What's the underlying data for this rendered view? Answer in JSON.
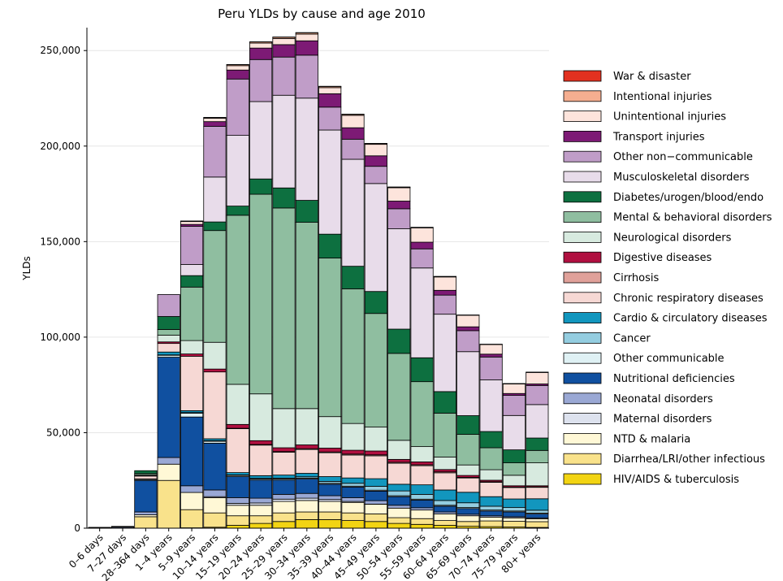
{
  "chart_data": {
    "type": "bar",
    "stacked": true,
    "title": "Peru YLDs by cause and age 2010",
    "xlabel": "",
    "ylabel": "YLDs",
    "ylim": [
      0,
      262000
    ],
    "yticks": [
      0,
      50000,
      100000,
      150000,
      200000,
      250000
    ],
    "ytick_labels": [
      "0",
      "50,000",
      "100,000",
      "150,000",
      "200,000",
      "250,000"
    ],
    "grid": "horizontal",
    "legend_position": "right",
    "categories": [
      "0–6 days",
      "7–27 days",
      "28–364 days",
      "1–4 years",
      "5–9 years",
      "10–14 years",
      "15–19 years",
      "20–24 years",
      "25–29 years",
      "30–34 years",
      "35–39 years",
      "40–44 years",
      "45–49 years",
      "50–54 years",
      "55–59 years",
      "60–64 years",
      "65–69 years",
      "70–74 years",
      "75–79 years",
      "80+ years"
    ],
    "series": [
      {
        "name": "HIV/AIDS & tuberculosis",
        "color": "#f2d413",
        "values": [
          0,
          0,
          0,
          0,
          200,
          500,
          1500,
          2500,
          3500,
          4500,
          4500,
          4000,
          3500,
          2500,
          2000,
          1500,
          1000,
          800,
          600,
          400
        ]
      },
      {
        "name": "Diarrhea/LRI/other infectious",
        "color": "#f9e28b",
        "values": [
          50,
          150,
          6000,
          25000,
          9500,
          7500,
          5000,
          4000,
          4500,
          4000,
          4000,
          4000,
          4000,
          3000,
          3000,
          2500,
          2500,
          3000,
          3000,
          3000
        ]
      },
      {
        "name": "NTD & malaria",
        "color": "#fff8d6",
        "values": [
          0,
          0,
          1000,
          8500,
          9000,
          8000,
          5500,
          5500,
          6000,
          6000,
          5500,
          5500,
          5000,
          5000,
          4500,
          3500,
          3000,
          2000,
          1800,
          1500
        ]
      },
      {
        "name": "Maternal disorders",
        "color": "#dde2ee",
        "values": [
          0,
          0,
          0,
          0,
          0,
          500,
          1000,
          1200,
          1200,
          1200,
          1000,
          500,
          100,
          0,
          0,
          0,
          0,
          0,
          0,
          0
        ]
      },
      {
        "name": "Neonatal disorders",
        "color": "#9aa8d4",
        "values": [
          200,
          500,
          1500,
          3500,
          3500,
          3500,
          3000,
          2500,
          2500,
          2500,
          2000,
          2000,
          1800,
          1500,
          1200,
          1000,
          800,
          700,
          600,
          500
        ]
      },
      {
        "name": "Nutritional deficiencies",
        "color": "#1050a0",
        "values": [
          0,
          0,
          16500,
          52500,
          36000,
          24500,
          11000,
          9500,
          7500,
          7500,
          6000,
          5500,
          5000,
          4500,
          4000,
          3000,
          3000,
          2500,
          2500,
          2000
        ]
      },
      {
        "name": "Other communicable",
        "color": "#dff1f4",
        "values": [
          200,
          300,
          500,
          1000,
          2000,
          1000,
          600,
          500,
          500,
          500,
          500,
          500,
          500,
          500,
          500,
          500,
          500,
          500,
          500,
          500
        ]
      },
      {
        "name": "Cancer",
        "color": "#94cde0",
        "values": [
          0,
          0,
          100,
          200,
          300,
          300,
          300,
          400,
          500,
          700,
          1000,
          1500,
          2000,
          2500,
          2500,
          2500,
          2500,
          2000,
          1800,
          1500
        ]
      },
      {
        "name": "Cardio & circulatory diseases",
        "color": "#1296be",
        "values": [
          0,
          0,
          200,
          1500,
          1000,
          1000,
          1200,
          1400,
          1600,
          1800,
          2500,
          2800,
          4000,
          3500,
          5000,
          5500,
          5500,
          5000,
          4500,
          6000
        ]
      },
      {
        "name": "Chronic respiratory diseases",
        "color": "#f6d8d4",
        "values": [
          0,
          0,
          1500,
          4500,
          28500,
          35000,
          23000,
          16000,
          12000,
          12500,
          12500,
          12000,
          12000,
          11000,
          10000,
          9000,
          7500,
          7500,
          6000,
          6000
        ]
      },
      {
        "name": "Cirrhosis",
        "color": "#e0a19a",
        "values": [
          0,
          0,
          0,
          0,
          0,
          0,
          200,
          300,
          300,
          400,
          400,
          500,
          500,
          500,
          500,
          500,
          300,
          300,
          200,
          200
        ]
      },
      {
        "name": "Digestive diseases",
        "color": "#b01040",
        "values": [
          0,
          0,
          200,
          800,
          1200,
          1500,
          2000,
          2000,
          2000,
          2000,
          2000,
          2000,
          2000,
          1500,
          1500,
          1200,
          1000,
          800,
          700,
          600
        ]
      },
      {
        "name": "Neurological disorders",
        "color": "#d7eadf",
        "values": [
          0,
          0,
          500,
          3500,
          7000,
          14000,
          21000,
          24500,
          20500,
          19000,
          16500,
          14000,
          12500,
          10000,
          8000,
          6500,
          5500,
          5500,
          5500,
          12000
        ]
      },
      {
        "name": "Mental & behavioral disorders",
        "color": "#8fbea0",
        "values": [
          0,
          0,
          600,
          3000,
          28000,
          58500,
          88500,
          104500,
          105000,
          97500,
          83000,
          70500,
          59500,
          45500,
          34000,
          23000,
          16000,
          11500,
          6500,
          6500
        ]
      },
      {
        "name": "Diabetes/urogen/blood/endo",
        "color": "#0d7040",
        "values": [
          0,
          0,
          1500,
          6800,
          6000,
          4500,
          4800,
          8000,
          10500,
          11500,
          12500,
          11800,
          11500,
          12700,
          12500,
          11300,
          9800,
          8500,
          6800,
          6500
        ]
      },
      {
        "name": "Musculoskeletal disorders",
        "color": "#e8dcea",
        "values": [
          0,
          0,
          0,
          0,
          5800,
          23500,
          37000,
          40500,
          48500,
          53500,
          54500,
          56000,
          56500,
          52500,
          47000,
          40500,
          33500,
          27000,
          18000,
          17500
        ]
      },
      {
        "name": "Other non−communicable",
        "color": "#c09dc8",
        "values": [
          0,
          0,
          0,
          11500,
          20000,
          26500,
          29500,
          22000,
          20000,
          22500,
          12000,
          10500,
          9000,
          10500,
          10000,
          10000,
          11000,
          12000,
          10500,
          10000
        ]
      },
      {
        "name": "Transport injuries",
        "color": "#7d1a75",
        "values": [
          0,
          0,
          0,
          0,
          1000,
          2500,
          4700,
          6000,
          6500,
          7500,
          7000,
          6000,
          5500,
          4000,
          3500,
          2500,
          2000,
          1500,
          1000,
          800
        ]
      },
      {
        "name": "Unintentional injuries",
        "color": "#fde4dc",
        "values": [
          0,
          0,
          0,
          0,
          1500,
          1800,
          2300,
          2600,
          3200,
          3500,
          3200,
          6500,
          6000,
          7000,
          7500,
          7000,
          6000,
          5000,
          5000,
          6000
        ]
      },
      {
        "name": "Intentional injuries",
        "color": "#f5ae90",
        "values": [
          0,
          0,
          0,
          0,
          200,
          300,
          500,
          600,
          700,
          700,
          600,
          500,
          400,
          300,
          200,
          200,
          100,
          100,
          100,
          100
        ]
      },
      {
        "name": "War & disaster",
        "color": "#e23120",
        "values": [
          0,
          0,
          0,
          0,
          100,
          100,
          100,
          100,
          100,
          100,
          100,
          100,
          100,
          100,
          100,
          100,
          100,
          100,
          100,
          100
        ]
      }
    ]
  }
}
